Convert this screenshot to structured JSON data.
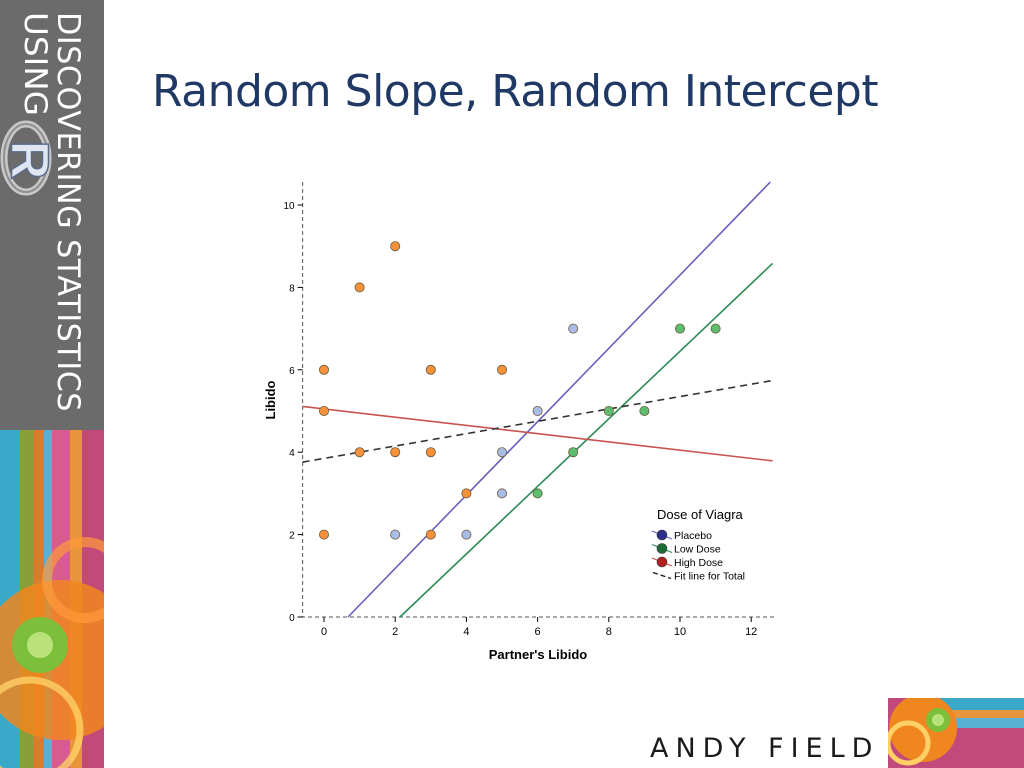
{
  "slide": {
    "title": "Random Slope, Random Intercept",
    "author": "ANDY FIELD",
    "book_line1": "DISCOVERING STATISTICS",
    "book_line2": "USING",
    "logo_letter": "R",
    "colors": {
      "title": "#1f3864",
      "sidebar": "#6b6b6b"
    }
  },
  "chart_data": {
    "type": "scatter",
    "title": "",
    "xlabel": "Partner's Libido",
    "ylabel": "Libido",
    "xlim": [
      -0.6,
      12.6
    ],
    "ylim": [
      0,
      10.6
    ],
    "xticks": [
      0,
      2,
      4,
      6,
      8,
      10,
      12
    ],
    "yticks": [
      0,
      2,
      4,
      6,
      8,
      10
    ],
    "grid": false,
    "legend": {
      "title": "Dose of Viagra",
      "placement": "bottom-right",
      "entries": [
        "Placebo",
        "Low Dose",
        "High Dose",
        "Fit line for Total"
      ]
    },
    "series": [
      {
        "name": "Placebo",
        "color": "#a9bde8",
        "line_color": "#6a5fbf",
        "points": [
          [
            2,
            2
          ],
          [
            4,
            2
          ],
          [
            5,
            3
          ],
          [
            5,
            4
          ],
          [
            6,
            5
          ],
          [
            7,
            7
          ]
        ],
        "fit": {
          "intercept": -0.6,
          "slope": 0.89
        }
      },
      {
        "name": "Low Dose",
        "color": "#5cbf6e",
        "line_color": "#2e8b57",
        "points": [
          [
            6,
            3
          ],
          [
            7,
            4
          ],
          [
            8,
            5
          ],
          [
            9,
            5
          ],
          [
            10,
            7
          ],
          [
            11,
            7
          ]
        ],
        "fit": {
          "intercept": -1.75,
          "slope": 0.82
        }
      },
      {
        "name": "High Dose",
        "color": "#f4913a",
        "line_color": "#c9524e",
        "points": [
          [
            0,
            2
          ],
          [
            0,
            5
          ],
          [
            0,
            6
          ],
          [
            1,
            4
          ],
          [
            1,
            8
          ],
          [
            2,
            4
          ],
          [
            2,
            9
          ],
          [
            3,
            2
          ],
          [
            3,
            4
          ],
          [
            3,
            6
          ],
          [
            4,
            3
          ],
          [
            5,
            6
          ]
        ],
        "fit": {
          "intercept": 5.05,
          "slope": -0.1
        }
      }
    ],
    "total_fit": {
      "name": "Fit line for Total",
      "intercept": 3.85,
      "slope": 0.15,
      "style": "dashed",
      "color": "#333333"
    }
  }
}
